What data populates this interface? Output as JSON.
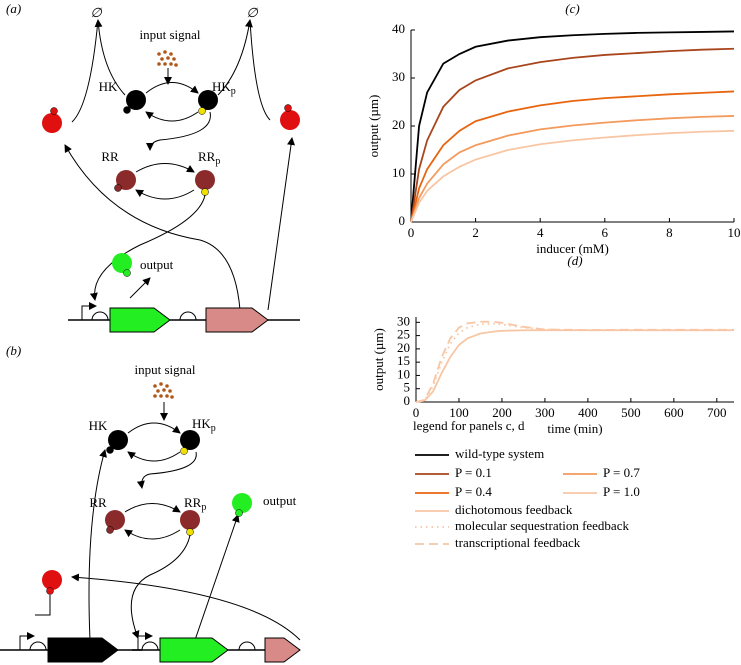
{
  "chart_data": [
    {
      "type": "line",
      "label": "(c)",
      "xlabel": "inducer (mM)",
      "ylabel": "output (µm)",
      "x": [
        0,
        0.25,
        0.5,
        1,
        1.5,
        2,
        3,
        4,
        5,
        6,
        7,
        8,
        9,
        10
      ],
      "xlim": [
        0,
        10
      ],
      "xticks": [
        0,
        2,
        4,
        6,
        8,
        10
      ],
      "ylim": [
        0,
        40
      ],
      "yticks": [
        0,
        10,
        20,
        30,
        40
      ],
      "series": [
        {
          "name": "wild-type system",
          "color": "#000000",
          "dash": "solid",
          "values": [
            0,
            20,
            27,
            33,
            35,
            36.5,
            37.8,
            38.5,
            38.9,
            39.2,
            39.4,
            39.5,
            39.6,
            39.7
          ]
        },
        {
          "name": "P = 0.1",
          "color": "#a8451c",
          "dash": "solid",
          "values": [
            0,
            11,
            17,
            24,
            27.5,
            29.5,
            32,
            33.3,
            34.2,
            34.8,
            35.2,
            35.6,
            35.9,
            36.1
          ]
        },
        {
          "name": "P = 0.4",
          "color": "#e8650f",
          "dash": "solid",
          "values": [
            0,
            7,
            11,
            16,
            19,
            21,
            23,
            24.3,
            25.2,
            25.8,
            26.2,
            26.6,
            26.9,
            27.2
          ]
        },
        {
          "name": "P = 0.7",
          "color": "#f39a5c",
          "dash": "solid",
          "values": [
            0,
            5,
            8,
            12,
            14.5,
            16,
            18,
            19.3,
            20.1,
            20.7,
            21.2,
            21.6,
            21.9,
            22.1
          ]
        },
        {
          "name": "P = 1.0",
          "color": "#f8c6a4",
          "dash": "solid",
          "values": [
            0,
            4,
            6.5,
            9.5,
            11.5,
            13,
            15,
            16.2,
            17,
            17.6,
            18.1,
            18.5,
            18.8,
            19
          ]
        }
      ]
    },
    {
      "type": "line",
      "label": "(d)",
      "xlabel": "time (min)",
      "ylabel": "output (µm)",
      "x": [
        0,
        20,
        40,
        60,
        80,
        100,
        120,
        150,
        180,
        200,
        250,
        300,
        400,
        500,
        600,
        740
      ],
      "xlim": [
        0,
        740
      ],
      "xticks": [
        0,
        100,
        200,
        300,
        400,
        500,
        600,
        700
      ],
      "ylim": [
        0,
        32
      ],
      "yticks": [
        0,
        5,
        10,
        15,
        20,
        25,
        30
      ],
      "series": [
        {
          "name": "dichotomous feedback",
          "color": "#f8c6a4",
          "dash": "solid",
          "values": [
            0,
            0.5,
            4,
            11,
            17,
            21.5,
            24,
            25.8,
            26.5,
            26.8,
            27,
            27,
            27,
            27,
            27,
            27
          ]
        },
        {
          "name": "molecular sequestration feedback",
          "color": "#f8c6a4",
          "dash": "dotted",
          "values": [
            0,
            0.7,
            6,
            15,
            22,
            26,
            28,
            29.3,
            29.5,
            29.2,
            28,
            27.3,
            27,
            27,
            27,
            27
          ]
        },
        {
          "name": "transcriptional feedback",
          "color": "#f8c6a4",
          "dash": "dashed",
          "values": [
            0,
            0.8,
            7,
            17,
            24,
            28,
            29.6,
            30.2,
            30.2,
            29.8,
            28.3,
            27.3,
            27.1,
            27.2,
            27.2,
            27.2
          ]
        }
      ]
    }
  ],
  "legend_title": "legend for panels c, d",
  "diagram_a": {
    "label": "(a)",
    "input": "input signal",
    "hk": "HK",
    "hkp": {
      "text": "HK",
      "sub": "p"
    },
    "rr": "RR",
    "rrp": {
      "text": "RR",
      "sub": "p"
    },
    "empty_left": "∅",
    "empty_right": "∅",
    "output": "output"
  },
  "diagram_b": {
    "label": "(b)",
    "input": "input signal",
    "hk": "HK",
    "hkp": {
      "text": "HK",
      "sub": "p"
    },
    "rr": "RR",
    "rrp": {
      "text": "RR",
      "sub": "p"
    },
    "output": "output"
  }
}
